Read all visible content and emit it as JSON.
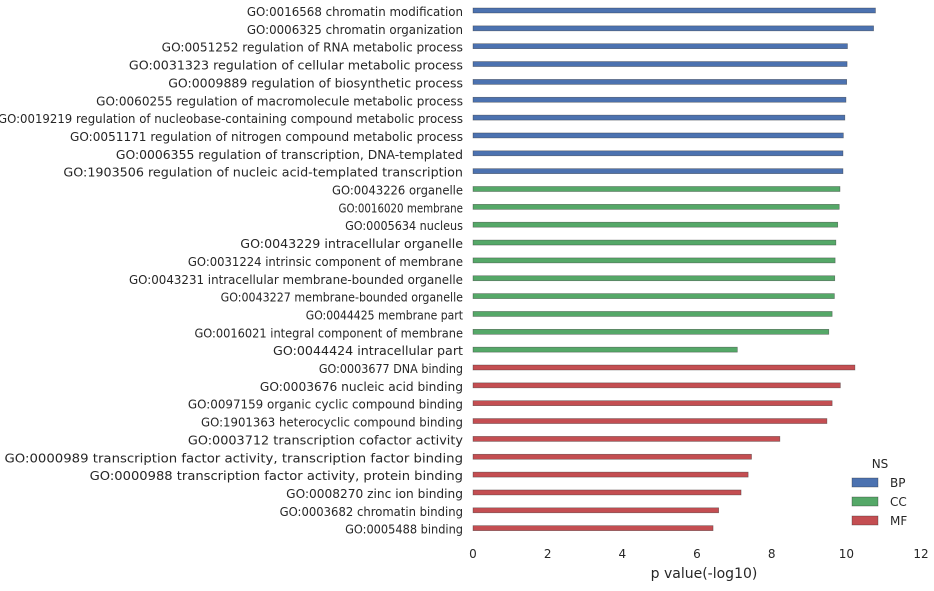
{
  "chart_data": {
    "type": "bar",
    "orientation": "horizontal",
    "xlabel": "p value(-log10)",
    "xlim": [
      0,
      12
    ],
    "xticks": [
      "0",
      "2",
      "4",
      "6",
      "8",
      "10",
      "12"
    ],
    "grid": false,
    "legend": {
      "title": "NS",
      "placement": "bottom-right",
      "entries": [
        {
          "name": "BP",
          "color": "#4c72b0"
        },
        {
          "name": "CC",
          "color": "#55a868"
        },
        {
          "name": "MF",
          "color": "#c44e52"
        }
      ]
    },
    "categories": [
      "GO:0016568 chromatin modification",
      "GO:0006325 chromatin organization",
      "GO:0051252 regulation of RNA metabolic process",
      "GO:0031323 regulation of cellular metabolic process",
      "GO:0009889 regulation of biosynthetic process",
      "GO:0060255 regulation of macromolecule metabolic process",
      "GO:0019219 regulation of nucleobase-containing compound metabolic process",
      "GO:0051171 regulation of nitrogen compound metabolic process",
      "GO:0006355 regulation of transcription, DNA-templated",
      "GO:1903506 regulation of nucleic acid-templated transcription",
      "GO:0043226 organelle",
      "GO:0016020 membrane",
      "GO:0005634 nucleus",
      "GO:0043229 intracellular organelle",
      "GO:0031224 intrinsic component of membrane",
      "GO:0043231 intracellular membrane-bounded organelle",
      "GO:0043227 membrane-bounded organelle",
      "GO:0044425 membrane part",
      "GO:0016021 integral component of membrane",
      "GO:0044424 intracellular part",
      "GO:0003677 DNA binding",
      "GO:0003676 nucleic acid binding",
      "GO:0097159 organic cyclic compound binding",
      "GO:1901363 heterocyclic compound binding",
      "GO:0003712 transcription cofactor activity",
      "GO:0000989 transcription factor activity, transcription factor binding",
      "GO:0000988 transcription factor activity, protein binding",
      "GO:0008270 zinc ion binding",
      "GO:0003682 chromatin binding",
      "GO:0005488 binding"
    ],
    "values": [
      10.78,
      10.73,
      10.03,
      10.02,
      10.01,
      9.99,
      9.96,
      9.92,
      9.91,
      9.91,
      9.83,
      9.81,
      9.77,
      9.72,
      9.7,
      9.69,
      9.68,
      9.62,
      9.53,
      7.08,
      10.23,
      9.84,
      9.62,
      9.48,
      8.22,
      7.46,
      7.37,
      7.18,
      6.58,
      6.43
    ],
    "groups": [
      "BP",
      "BP",
      "BP",
      "BP",
      "BP",
      "BP",
      "BP",
      "BP",
      "BP",
      "BP",
      "CC",
      "CC",
      "CC",
      "CC",
      "CC",
      "CC",
      "CC",
      "CC",
      "CC",
      "CC",
      "MF",
      "MF",
      "MF",
      "MF",
      "MF",
      "MF",
      "MF",
      "MF",
      "MF",
      "MF"
    ]
  }
}
